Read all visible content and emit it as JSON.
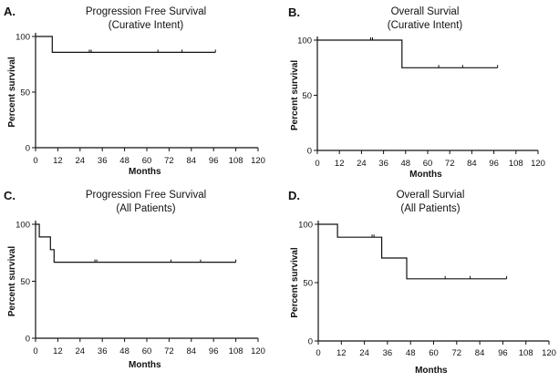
{
  "chart_data": [
    {
      "type": "line",
      "panel_label": "A.",
      "title": "Progression Free Survival",
      "subtitle": "(Curative Intent)",
      "xlabel": "Months",
      "ylabel": "Percent survival",
      "xlim": [
        0,
        120
      ],
      "ylim": [
        0,
        100
      ],
      "x_ticks": [
        0,
        12,
        24,
        36,
        48,
        60,
        72,
        84,
        96,
        108,
        120
      ],
      "y_ticks": [
        0,
        50,
        100
      ],
      "steps": [
        [
          0,
          100
        ],
        [
          9,
          100
        ],
        [
          9,
          85.7
        ],
        [
          97,
          85.7
        ]
      ],
      "censor_x": [
        29,
        30,
        66,
        79
      ]
    },
    {
      "type": "line",
      "panel_label": "B.",
      "title": "Overall Survial",
      "subtitle": "(Curative Intent)",
      "xlabel": "Months",
      "ylabel": "Percent survival",
      "xlim": [
        0,
        120
      ],
      "ylim": [
        0,
        100
      ],
      "x_ticks": [
        0,
        12,
        24,
        36,
        48,
        60,
        72,
        84,
        96,
        108,
        120
      ],
      "y_ticks": [
        0,
        50,
        100
      ],
      "steps": [
        [
          0,
          100
        ],
        [
          46,
          100
        ],
        [
          46,
          75
        ],
        [
          98,
          75
        ]
      ],
      "censor_x": [
        29,
        30,
        66,
        79
      ]
    },
    {
      "type": "line",
      "panel_label": "C.",
      "title": "Progression Free Survival",
      "subtitle": "(All Patients)",
      "xlabel": "Months",
      "ylabel": "Percent survival",
      "xlim": [
        0,
        120
      ],
      "ylim": [
        0,
        100
      ],
      "x_ticks": [
        0,
        12,
        24,
        36,
        48,
        60,
        72,
        84,
        96,
        108,
        120
      ],
      "y_ticks": [
        0,
        50,
        100
      ],
      "steps": [
        [
          0,
          100
        ],
        [
          2,
          100
        ],
        [
          2,
          88.9
        ],
        [
          8,
          88.9
        ],
        [
          8,
          77.8
        ],
        [
          10,
          77.8
        ],
        [
          10,
          66.7
        ],
        [
          108,
          66.7
        ]
      ],
      "censor_x": [
        32,
        33,
        73,
        89
      ]
    },
    {
      "type": "line",
      "panel_label": "D.",
      "title": "Overall Survial",
      "subtitle": "(All Patients)",
      "xlabel": "Months",
      "ylabel": "Percent survival",
      "xlim": [
        0,
        120
      ],
      "ylim": [
        0,
        100
      ],
      "x_ticks": [
        0,
        12,
        24,
        36,
        48,
        60,
        72,
        84,
        96,
        108,
        120
      ],
      "y_ticks": [
        0,
        50,
        100
      ],
      "steps": [
        [
          0,
          100
        ],
        [
          10,
          100
        ],
        [
          10,
          88.9
        ],
        [
          33,
          88.9
        ],
        [
          33,
          71.1
        ],
        [
          46,
          71.1
        ],
        [
          46,
          53.3
        ],
        [
          98,
          53.3
        ]
      ],
      "censor_x": [
        28,
        29,
        66,
        79
      ]
    }
  ]
}
